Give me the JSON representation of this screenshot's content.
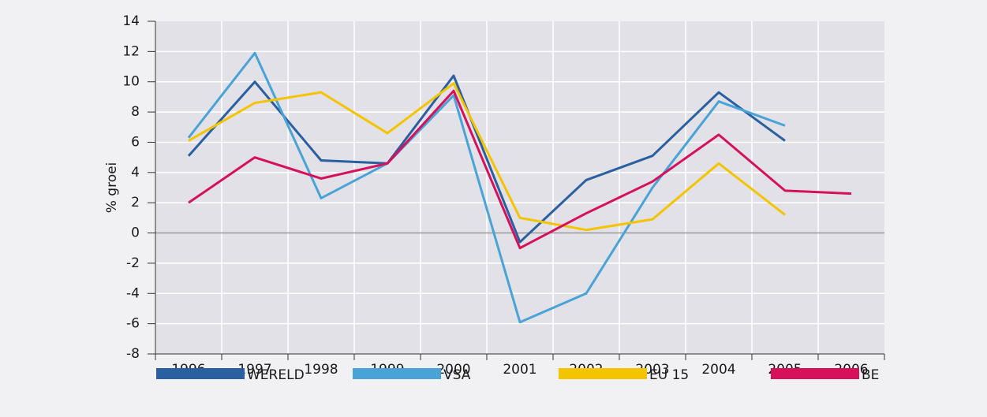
{
  "chart_data": {
    "type": "line",
    "y_label": "% groei",
    "categories": [
      "1996",
      "1997",
      "1998",
      "1999",
      "2000",
      "2001",
      "2002",
      "2003",
      "2004",
      "2005",
      "2006"
    ],
    "series": [
      {
        "name": "WERELD",
        "color": "#2a5fa0",
        "values": [
          5.1,
          10,
          4.8,
          4.6,
          10.4,
          -0.6,
          3.5,
          5.1,
          9.3,
          6.1,
          null
        ]
      },
      {
        "name": "VSA",
        "color": "#4aa3d6",
        "values": [
          6.3,
          11.9,
          2.3,
          4.6,
          9.1,
          -5.9,
          -4,
          3,
          8.7,
          7.1,
          null
        ]
      },
      {
        "name": "EU 15",
        "color": "#f5c400",
        "values": [
          6.1,
          8.6,
          9.3,
          6.6,
          9.9,
          1.0,
          0.2,
          0.9,
          4.6,
          1.2,
          null
        ]
      },
      {
        "name": "BE",
        "color": "#d6105a",
        "values": [
          2.0,
          5.0,
          3.6,
          4.6,
          9.4,
          -1.0,
          1.3,
          3.4,
          6.5,
          2.8,
          2.6
        ]
      }
    ],
    "ylim": [
      -8,
      14
    ],
    "yticks": [
      -8,
      -6,
      -4,
      -2,
      0,
      2,
      4,
      6,
      8,
      10,
      12,
      14
    ],
    "grid": true,
    "legend": "bottom"
  }
}
